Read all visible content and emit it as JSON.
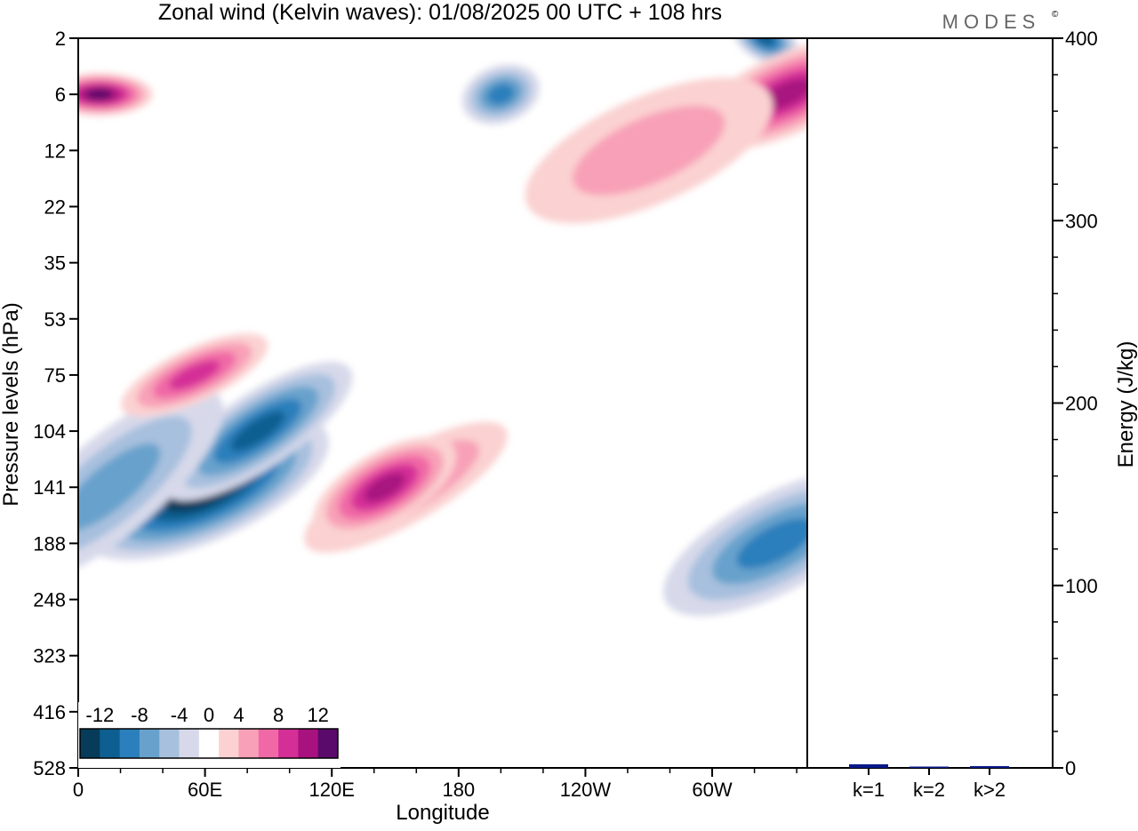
{
  "header": {
    "title": "Zonal wind (Kelvin waves):  01/08/2025  00 UTC  + 108 hrs",
    "logo": "MODES",
    "logo_mark": "©"
  },
  "colors": {
    "levels": [
      "#073b5a",
      "#0d5f91",
      "#2b7fbc",
      "#68a2cc",
      "#a7c0de",
      "#d7d9ea",
      "#ffffff",
      "#fbd1d1",
      "#f8a0b7",
      "#f069a6",
      "#d42f97",
      "#a8127f",
      "#5a0a6b"
    ],
    "bar": "#0a1a8a",
    "axis": "#000000"
  },
  "chart_data": [
    {
      "type": "heatmap",
      "title": "Zonal wind (Kelvin waves):  01/08/2025  00 UTC  + 108 hrs",
      "xlabel": "Longitude",
      "ylabel": "Pressure levels (hPa)",
      "x_ticks": [
        "0",
        "60E",
        "120E",
        "180",
        "120W",
        "60W"
      ],
      "x_tick_degrees": [
        0,
        60,
        120,
        180,
        240,
        300
      ],
      "xlim": [
        0,
        345
      ],
      "y_ticks": [
        "2",
        "6",
        "12",
        "22",
        "35",
        "53",
        "75",
        "104",
        "141",
        "188",
        "248",
        "323",
        "416",
        "528"
      ],
      "colorbar": {
        "labels": [
          "-12",
          "-8",
          "-4",
          "0",
          "4",
          "8",
          "12"
        ],
        "levels": [
          -12,
          -8,
          -4,
          0,
          4,
          8,
          12
        ]
      },
      "features": [
        {
          "name": "easterly core (lower stratosphere, 60E)",
          "lon": 60,
          "level": "141",
          "value": -13
        },
        {
          "name": "easterly band (60E-105E)",
          "lon": 85,
          "level": "104",
          "value": -10
        },
        {
          "name": "easterly anomaly (30E)",
          "lon": 15,
          "level": "141",
          "value": -6
        },
        {
          "name": "westerly anomaly (50E)",
          "lon": 55,
          "level": "75",
          "value": 7
        },
        {
          "name": "westerly band (100E-200E)",
          "lon": 155,
          "level": "141",
          "value": 6
        },
        {
          "name": "westerly maximum (155E)",
          "lon": 145,
          "level": "141",
          "value": 9
        },
        {
          "name": "easterly anomaly (upper, 160W)",
          "lon": 200,
          "level": "6",
          "value": -7
        },
        {
          "name": "westerly anomaly (upper, 0-20E)",
          "lon": 10,
          "level": "6",
          "value": 11
        },
        {
          "name": "easterly anomaly (upper, 30W)",
          "lon": 325,
          "level": "2",
          "value": -9
        },
        {
          "name": "westerly anomaly (upper, 20W)",
          "lon": 335,
          "level": "6",
          "value": 10
        },
        {
          "name": "easterly anomaly (20W, 188 hPa)",
          "lon": 330,
          "level": "188",
          "value": -7
        },
        {
          "name": "westerly band (upper, 200-300)",
          "lon": 270,
          "level": "12",
          "value": 4
        }
      ]
    },
    {
      "type": "bar",
      "categories": [
        "k=1",
        "k=2",
        "k>2"
      ],
      "values": [
        2,
        0.5,
        1
      ],
      "ylabel": "Energy (J/kg)",
      "ylim": [
        0,
        400
      ],
      "y_ticks": [
        "0",
        "100",
        "200",
        "300",
        "400"
      ],
      "y_tick_values": [
        0,
        100,
        200,
        300,
        400
      ]
    }
  ]
}
